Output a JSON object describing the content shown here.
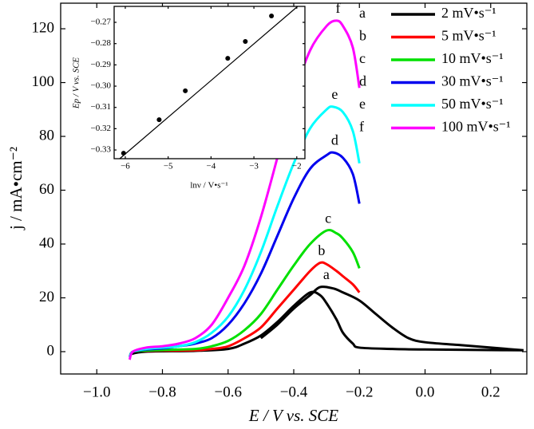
{
  "chart_data": [
    {
      "type": "line",
      "xlabel": "E / V vs. SCE",
      "ylabel": "j / mA•cm⁻²",
      "xlim": [
        -1.11,
        0.31
      ],
      "ylim": [
        -8.3,
        129.5
      ],
      "xticks": [
        {
          "value": -1.0,
          "label": "−1.0"
        },
        {
          "value": -0.8,
          "label": "−0.8"
        },
        {
          "value": -0.6,
          "label": "−0.6"
        },
        {
          "value": -0.4,
          "label": "−0.4"
        },
        {
          "value": -0.2,
          "label": "−0.2"
        },
        {
          "value": 0.0,
          "label": "0.0"
        },
        0.2
      ],
      "yticks": [
        0,
        20,
        40,
        60,
        80,
        100,
        120
      ],
      "series": [
        {
          "name": "2 mV•s⁻¹",
          "label": "a",
          "color": "#000000",
          "x": [
            -0.9,
            -0.85,
            -0.7,
            -0.6,
            -0.55,
            -0.5,
            -0.45,
            -0.4,
            -0.35,
            -0.32,
            -0.3,
            -0.27,
            -0.25,
            -0.22,
            -0.2,
            -0.1,
            0.0,
            0.1,
            0.2,
            0.3,
            null,
            -0.5,
            -0.45,
            -0.4,
            -0.35,
            -0.32,
            -0.28,
            -0.25,
            -0.2,
            -0.15,
            -0.1,
            -0.05,
            0.0,
            0.1,
            0.2,
            0.3
          ],
          "values": [
            -1,
            0,
            0.3,
            1,
            3,
            6,
            11,
            17,
            22,
            21,
            18,
            12,
            7,
            3,
            1.5,
            1,
            0.8,
            0.7,
            0.6,
            0.5,
            null,
            5,
            10,
            16,
            21,
            24,
            23.5,
            22,
            19,
            14,
            9,
            5,
            3.5,
            2.5,
            1.5,
            0.5
          ]
        },
        {
          "name": "5 mV•s⁻¹",
          "label": "b",
          "color": "#ff0000",
          "x": [
            -0.9,
            -0.89,
            -0.85,
            -0.8,
            -0.7,
            -0.65,
            -0.6,
            -0.55,
            -0.5,
            -0.45,
            -0.4,
            -0.35,
            -0.32,
            -0.3,
            -0.27,
            -0.25,
            -0.22,
            -0.2
          ],
          "values": [
            -2,
            0,
            0.3,
            0.4,
            0.5,
            1,
            2,
            5,
            9,
            16,
            23,
            30,
            33,
            32.5,
            30,
            28,
            25,
            22
          ]
        },
        {
          "name": "10 mV•s⁻¹",
          "label": "c",
          "color": "#00e000",
          "x": [
            -0.9,
            -0.89,
            -0.85,
            -0.8,
            -0.7,
            -0.65,
            -0.6,
            -0.55,
            -0.5,
            -0.45,
            -0.4,
            -0.35,
            -0.3,
            -0.27,
            -0.25,
            -0.22,
            -0.2
          ],
          "values": [
            -2,
            0,
            0.4,
            0.6,
            1,
            2,
            4,
            8,
            14,
            23,
            32,
            40,
            45,
            44,
            42,
            37,
            31
          ]
        },
        {
          "name": "30 mV•s⁻¹",
          "label": "d",
          "color": "#0000ee",
          "x": [
            -0.9,
            -0.89,
            -0.85,
            -0.8,
            -0.75,
            -0.7,
            -0.65,
            -0.6,
            -0.55,
            -0.5,
            -0.45,
            -0.4,
            -0.35,
            -0.3,
            -0.28,
            -0.25,
            -0.22,
            -0.2
          ],
          "values": [
            -2,
            0,
            0.8,
            1.2,
            2,
            3,
            5,
            10,
            18,
            29,
            43,
            57,
            68,
            73,
            74,
            72,
            66,
            55
          ]
        },
        {
          "name": "50 mV•s⁻¹",
          "label": "e",
          "color": "#00ffff",
          "x": [
            -0.9,
            -0.89,
            -0.85,
            -0.8,
            -0.75,
            -0.7,
            -0.65,
            -0.6,
            -0.55,
            -0.5,
            -0.45,
            -0.4,
            -0.35,
            -0.3,
            -0.28,
            -0.25,
            -0.22,
            -0.2
          ],
          "values": [
            -2,
            0,
            1,
            1.5,
            2,
            3.5,
            7,
            13,
            23,
            37,
            54,
            70,
            83,
            90,
            91,
            89,
            82,
            70
          ]
        },
        {
          "name": "100 mV•s⁻¹",
          "label": "f",
          "color": "#ff00ff",
          "x": [
            -0.9,
            -0.89,
            -0.85,
            -0.8,
            -0.75,
            -0.7,
            -0.65,
            -0.6,
            -0.55,
            -0.5,
            -0.45,
            -0.4,
            -0.35,
            -0.3,
            -0.27,
            -0.25,
            -0.22,
            -0.2
          ],
          "values": [
            -3,
            0,
            1.5,
            2,
            3,
            5,
            10,
            20,
            32,
            50,
            72,
            95,
            112,
            121,
            123,
            121,
            113,
            98
          ]
        }
      ]
    },
    {
      "type": "scatter",
      "xlabel": "lnν / V•s⁻¹",
      "ylabel": "Ep / V vs. SCE",
      "xlim": [
        -6.26,
        -1.81
      ],
      "ylim": [
        -0.3341,
        -0.2625
      ],
      "xticks": [
        {
          "value": -6,
          "label": "−6"
        },
        {
          "value": -5,
          "label": "−5"
        },
        {
          "value": -4,
          "label": "−4"
        },
        {
          "value": -3,
          "label": "−3"
        },
        {
          "value": -2,
          "label": "−2"
        }
      ],
      "yticks": [
        {
          "value": -0.33,
          "label": "−0.33"
        },
        {
          "value": -0.32,
          "label": "−0.32"
        },
        {
          "value": -0.31,
          "label": "−0.31"
        },
        {
          "value": -0.3,
          "label": "−0.30"
        },
        {
          "value": -0.29,
          "label": "−0.29"
        },
        {
          "value": -0.28,
          "label": "−0.28"
        },
        {
          "value": -0.27,
          "label": "−0.27"
        }
      ],
      "x": [
        -6.04,
        -5.21,
        -4.6,
        -3.61,
        -3.2,
        -2.59
      ],
      "values": [
        -0.3315,
        -0.3158,
        -0.3022,
        -0.2869,
        -0.279,
        -0.267
      ],
      "color": "#000000",
      "fit": {
        "x": [
          -6.13,
          -1.98
        ],
        "values": [
          -0.3341,
          -0.2625
        ]
      }
    }
  ]
}
